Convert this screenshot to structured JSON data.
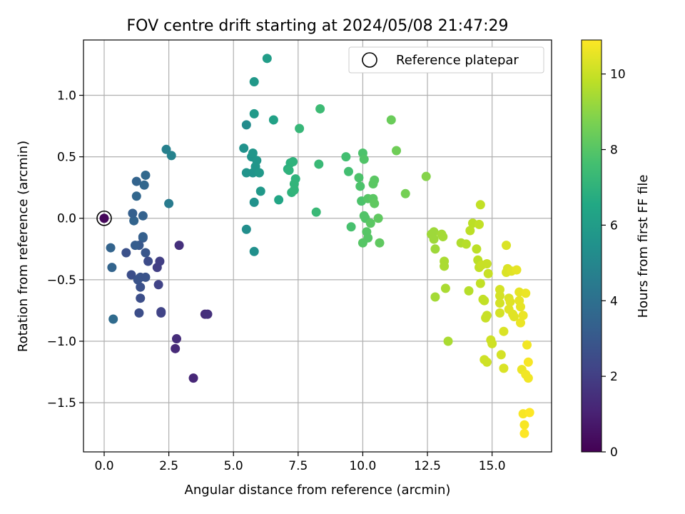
{
  "chart_data": {
    "type": "scatter",
    "title": "FOV centre drift starting at 2024/05/08 21:47:29",
    "xlabel": "Angular distance from reference (arcmin)",
    "ylabel": "Rotation from reference (arcmin)",
    "xlim": [
      -0.8,
      17.3
    ],
    "ylim": [
      -1.9,
      1.45
    ],
    "xticks": [
      0.0,
      2.5,
      5.0,
      7.5,
      10.0,
      12.5,
      15.0
    ],
    "xtick_labels": [
      "0.0",
      "2.5",
      "5.0",
      "7.5",
      "10.0",
      "12.5",
      "15.0"
    ],
    "yticks": [
      -1.5,
      -1.0,
      -0.5,
      0.0,
      0.5,
      1.0
    ],
    "ytick_labels": [
      "−1.5",
      "−1.0",
      "−0.5",
      "0.0",
      "0.5",
      "1.0"
    ],
    "grid": true,
    "legend": {
      "placement": "top-right",
      "entries": [
        "Reference platepar"
      ]
    },
    "colorbar": {
      "label": "Hours from first FF file",
      "range": [
        0,
        10.9
      ],
      "ticks": [
        0,
        2,
        4,
        6,
        8,
        10
      ],
      "tick_labels": [
        "0",
        "2",
        "4",
        "6",
        "8",
        "10"
      ],
      "colormap": "viridis"
    },
    "reference_point": {
      "x": 0.0,
      "y": 0.0
    },
    "points": [
      [
        0.0,
        0.0,
        0.2
      ],
      [
        3.45,
        -1.3,
        1.2
      ],
      [
        2.75,
        -1.06,
        1.3
      ],
      [
        2.8,
        -0.98,
        1.4
      ],
      [
        3.9,
        -0.78,
        1.4
      ],
      [
        4.0,
        -0.78,
        1.5
      ],
      [
        2.2,
        -0.77,
        2.2
      ],
      [
        2.2,
        -0.76,
        2.2
      ],
      [
        2.9,
        -0.22,
        1.5
      ],
      [
        2.1,
        -0.54,
        2.2
      ],
      [
        2.15,
        -0.35,
        2.0
      ],
      [
        2.05,
        -0.4,
        2.0
      ],
      [
        1.35,
        -0.77,
        2.6
      ],
      [
        1.4,
        -0.65,
        2.6
      ],
      [
        1.4,
        -0.56,
        2.7
      ],
      [
        1.4,
        -0.48,
        2.8
      ],
      [
        1.05,
        -0.46,
        2.6
      ],
      [
        1.6,
        -0.48,
        2.8
      ],
      [
        1.3,
        -0.5,
        2.8
      ],
      [
        0.85,
        -0.28,
        2.7
      ],
      [
        1.7,
        -0.35,
        2.5
      ],
      [
        1.6,
        -0.28,
        2.9
      ],
      [
        1.5,
        -0.16,
        3.0
      ],
      [
        1.35,
        -0.22,
        3.0
      ],
      [
        1.2,
        -0.22,
        3.2
      ],
      [
        1.5,
        -0.15,
        3.3
      ],
      [
        1.15,
        -0.02,
        3.5
      ],
      [
        1.1,
        0.04,
        3.3
      ],
      [
        1.5,
        0.02,
        3.4
      ],
      [
        1.25,
        0.18,
        3.6
      ],
      [
        1.25,
        0.3,
        3.5
      ],
      [
        1.55,
        0.27,
        3.6
      ],
      [
        1.6,
        0.35,
        3.7
      ],
      [
        0.35,
        -0.82,
        3.8
      ],
      [
        0.3,
        -0.4,
        3.5
      ],
      [
        0.25,
        -0.24,
        3.5
      ],
      [
        2.5,
        0.12,
        4.5
      ],
      [
        2.4,
        0.56,
        4.7
      ],
      [
        2.6,
        0.51,
        4.8
      ],
      [
        5.5,
        0.76,
        5.2
      ],
      [
        5.5,
        -0.09,
        5.3
      ],
      [
        5.8,
        -0.27,
        5.4
      ],
      [
        5.8,
        0.13,
        5.5
      ],
      [
        5.4,
        0.57,
        5.5
      ],
      [
        5.5,
        0.37,
        5.6
      ],
      [
        5.75,
        0.37,
        5.6
      ],
      [
        5.7,
        0.5,
        5.6
      ],
      [
        5.75,
        0.53,
        5.7
      ],
      [
        5.9,
        0.47,
        5.7
      ],
      [
        5.85,
        0.42,
        5.7
      ],
      [
        6.0,
        0.37,
        5.8
      ],
      [
        6.05,
        0.22,
        5.8
      ],
      [
        5.8,
        0.85,
        5.9
      ],
      [
        5.8,
        1.11,
        5.8
      ],
      [
        6.3,
        1.3,
        6.0
      ],
      [
        6.55,
        0.8,
        6.2
      ],
      [
        6.75,
        0.15,
        6.4
      ],
      [
        7.1,
        0.4,
        6.8
      ],
      [
        7.2,
        0.45,
        6.9
      ],
      [
        7.15,
        0.39,
        7.0
      ],
      [
        7.3,
        0.46,
        7.0
      ],
      [
        7.25,
        0.21,
        7.0
      ],
      [
        7.35,
        0.23,
        7.1
      ],
      [
        7.4,
        0.32,
        7.0
      ],
      [
        7.35,
        0.28,
        7.1
      ],
      [
        7.55,
        0.73,
        7.2
      ],
      [
        8.2,
        0.05,
        7.3
      ],
      [
        8.3,
        0.44,
        7.3
      ],
      [
        8.35,
        0.89,
        7.4
      ],
      [
        9.35,
        0.5,
        7.6
      ],
      [
        9.45,
        0.38,
        7.6
      ],
      [
        9.55,
        -0.07,
        7.7
      ],
      [
        9.85,
        0.33,
        7.8
      ],
      [
        9.9,
        0.26,
        7.8
      ],
      [
        9.95,
        0.14,
        7.8
      ],
      [
        10.0,
        0.53,
        7.8
      ],
      [
        10.05,
        0.48,
        7.9
      ],
      [
        10.05,
        0.02,
        7.9
      ],
      [
        10.1,
        0.0,
        7.9
      ],
      [
        10.15,
        -0.11,
        8.0
      ],
      [
        10.2,
        -0.16,
        8.0
      ],
      [
        10.0,
        -0.2,
        8.0
      ],
      [
        10.2,
        0.16,
        8.0
      ],
      [
        10.3,
        -0.04,
        8.1
      ],
      [
        10.4,
        0.16,
        8.1
      ],
      [
        10.4,
        0.28,
        8.1
      ],
      [
        10.45,
        0.31,
        8.1
      ],
      [
        10.45,
        0.12,
        8.2
      ],
      [
        10.6,
        0.0,
        8.2
      ],
      [
        10.65,
        -0.2,
        8.2
      ],
      [
        11.1,
        0.8,
        8.4
      ],
      [
        11.3,
        0.55,
        8.5
      ],
      [
        11.65,
        0.2,
        8.6
      ],
      [
        12.45,
        0.34,
        8.9
      ],
      [
        12.65,
        -0.13,
        9.3
      ],
      [
        12.75,
        -0.11,
        9.3
      ],
      [
        12.75,
        -0.17,
        9.3
      ],
      [
        12.8,
        -0.25,
        9.3
      ],
      [
        12.8,
        -0.64,
        9.4
      ],
      [
        13.05,
        -0.13,
        9.4
      ],
      [
        13.1,
        -0.15,
        9.4
      ],
      [
        13.15,
        -0.35,
        9.5
      ],
      [
        13.15,
        -0.39,
        9.5
      ],
      [
        13.2,
        -0.57,
        9.5
      ],
      [
        13.3,
        -1.0,
        9.5
      ],
      [
        13.8,
        -0.2,
        9.6
      ],
      [
        14.0,
        -0.21,
        9.7
      ],
      [
        14.1,
        -0.59,
        9.7
      ],
      [
        14.15,
        -0.1,
        9.8
      ],
      [
        14.25,
        -0.04,
        9.8
      ],
      [
        14.4,
        -0.25,
        9.8
      ],
      [
        14.45,
        -0.34,
        9.8
      ],
      [
        14.5,
        -0.05,
        9.9
      ],
      [
        14.55,
        0.11,
        9.9
      ],
      [
        14.5,
        -0.4,
        9.9
      ],
      [
        14.55,
        -0.53,
        9.9
      ],
      [
        14.65,
        -0.66,
        9.9
      ],
      [
        14.7,
        -0.67,
        9.9
      ],
      [
        14.6,
        -0.38,
        10.0
      ],
      [
        14.8,
        -0.37,
        10.0
      ],
      [
        14.85,
        -0.45,
        10.0
      ],
      [
        14.75,
        -0.81,
        10.0
      ],
      [
        14.8,
        -0.79,
        10.0
      ],
      [
        14.95,
        -0.99,
        10.1
      ],
      [
        15.0,
        -1.02,
        10.1
      ],
      [
        14.7,
        -1.15,
        10.1
      ],
      [
        14.8,
        -1.17,
        10.1
      ],
      [
        15.3,
        -0.63,
        10.2
      ],
      [
        15.3,
        -0.69,
        10.2
      ],
      [
        15.3,
        -0.58,
        10.2
      ],
      [
        15.3,
        -0.77,
        10.2
      ],
      [
        15.35,
        -1.11,
        10.2
      ],
      [
        15.45,
        -0.92,
        10.3
      ],
      [
        15.45,
        -1.22,
        10.3
      ],
      [
        15.55,
        -0.22,
        10.3
      ],
      [
        15.6,
        -0.41,
        10.3
      ],
      [
        15.55,
        -0.44,
        10.3
      ],
      [
        15.65,
        -0.65,
        10.3
      ],
      [
        15.7,
        -0.68,
        10.4
      ],
      [
        15.65,
        -0.74,
        10.4
      ],
      [
        15.75,
        -0.43,
        10.4
      ],
      [
        15.8,
        -0.78,
        10.4
      ],
      [
        15.85,
        -0.8,
        10.4
      ],
      [
        15.95,
        -0.42,
        10.5
      ],
      [
        16.05,
        -0.6,
        10.5
      ],
      [
        16.05,
        -0.67,
        10.5
      ],
      [
        16.1,
        -0.72,
        10.5
      ],
      [
        16.1,
        -0.85,
        10.6
      ],
      [
        16.2,
        -0.79,
        10.6
      ],
      [
        16.15,
        -1.23,
        10.6
      ],
      [
        16.3,
        -0.61,
        10.6
      ],
      [
        16.35,
        -1.03,
        10.7
      ],
      [
        16.3,
        -1.27,
        10.7
      ],
      [
        16.4,
        -1.3,
        10.7
      ],
      [
        16.4,
        -1.17,
        10.8
      ],
      [
        16.2,
        -1.59,
        10.8
      ],
      [
        16.25,
        -1.68,
        10.8
      ],
      [
        16.25,
        -1.75,
        10.9
      ],
      [
        16.45,
        -1.58,
        10.9
      ]
    ]
  }
}
